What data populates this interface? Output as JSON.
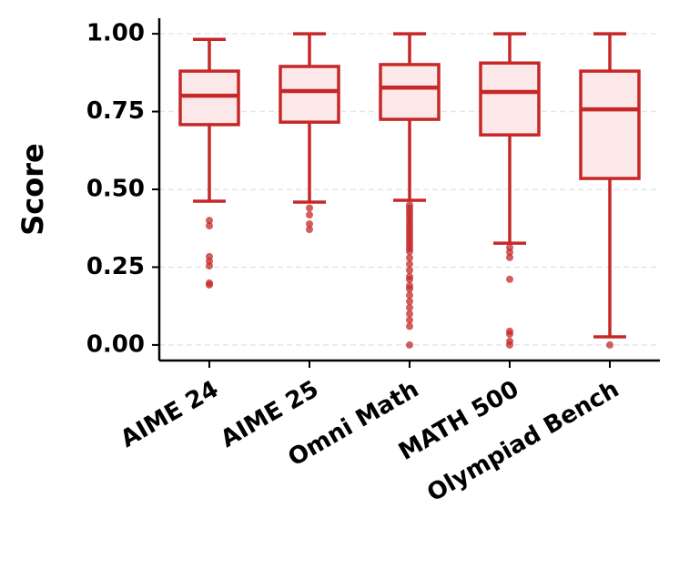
{
  "chart_data": {
    "type": "box",
    "y_label": "Score",
    "categories": [
      "AIME 24",
      "AIME 25",
      "Omni Math",
      "MATH 500",
      "Olympiad Bench"
    ],
    "color": "#c62828",
    "fill": "#fce8e8",
    "ylim": [
      -0.05,
      1.05
    ],
    "yticks": [
      {
        "value": 0,
        "label": "0.00"
      },
      {
        "value": 0.25,
        "label": "0.25"
      },
      {
        "value": 0.5,
        "label": "0.50"
      },
      {
        "value": 0.75,
        "label": "0.75"
      },
      {
        "value": 1,
        "label": "1.00"
      }
    ],
    "grid": true,
    "boxes": [
      {
        "whisker_low": 0.462,
        "q1": 0.708,
        "median": 0.801,
        "q3": 0.88,
        "whisker_high": 0.982,
        "outliers": [
          0.4,
          0.383,
          0.284,
          0.269,
          0.254,
          0.199,
          0.193
        ]
      },
      {
        "whisker_low": 0.459,
        "q1": 0.716,
        "median": 0.816,
        "q3": 0.895,
        "whisker_high": 1.0,
        "outliers": [
          0.44,
          0.418,
          0.389,
          0.371
        ]
      },
      {
        "whisker_low": 0.465,
        "q1": 0.725,
        "median": 0.827,
        "q3": 0.901,
        "whisker_high": 1.0,
        "outliers": [
          0.45,
          0.44,
          0.43,
          0.42,
          0.41,
          0.4,
          0.39,
          0.38,
          0.37,
          0.36,
          0.35,
          0.34,
          0.33,
          0.32,
          0.31,
          0.3,
          0.28,
          0.26,
          0.24,
          0.22,
          0.21,
          0.19,
          0.18,
          0.16,
          0.14,
          0.12,
          0.1,
          0.08,
          0.06,
          0.0
        ]
      },
      {
        "whisker_low": 0.327,
        "q1": 0.675,
        "median": 0.813,
        "q3": 0.906,
        "whisker_high": 1.0,
        "outliers": [
          0.313,
          0.298,
          0.281,
          0.211,
          0.044,
          0.035,
          0.012,
          0.0
        ]
      },
      {
        "whisker_low": 0.026,
        "q1": 0.535,
        "median": 0.757,
        "q3": 0.88,
        "whisker_high": 1.0,
        "outliers": [
          0.0
        ]
      }
    ]
  }
}
